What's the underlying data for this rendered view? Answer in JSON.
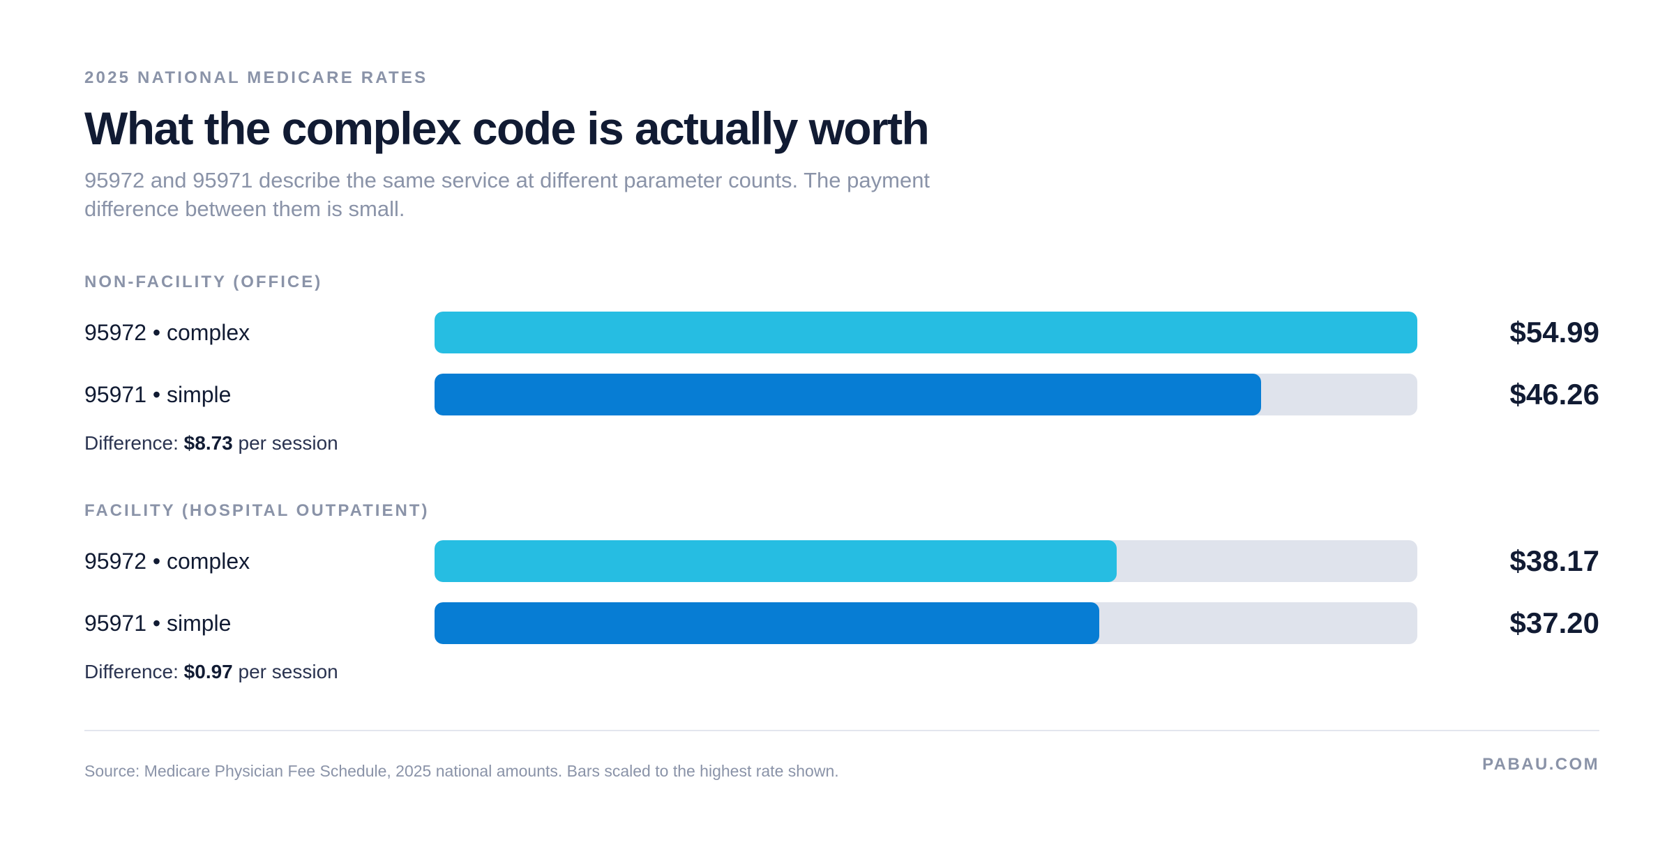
{
  "eyebrow": "2025 NATIONAL MEDICARE RATES",
  "title": "What the complex code is actually worth",
  "subtitle": "95972 and 95971 describe the same service at different parameter counts. The payment difference between them is small.",
  "colors": {
    "complex": "#26bde2",
    "simple": "#077dd4",
    "track": "#dfe3ec"
  },
  "chart_data": {
    "type": "bar",
    "orientation": "horizontal",
    "xlim": [
      0,
      54.99
    ],
    "groups": [
      {
        "label": "NON-FACILITY (OFFICE)",
        "rows": [
          {
            "label": "95972 • complex",
            "value": 54.99,
            "value_label": "$54.99",
            "color": "#26bde2"
          },
          {
            "label": "95971 • simple",
            "value": 46.26,
            "value_label": "$46.26",
            "color": "#077dd4"
          }
        ],
        "difference": {
          "prefix": "Difference:",
          "amount": "$8.73",
          "suffix": "per session"
        }
      },
      {
        "label": "FACILITY (HOSPITAL OUTPATIENT)",
        "rows": [
          {
            "label": "95972 • complex",
            "value": 38.17,
            "value_label": "$38.17",
            "color": "#26bde2"
          },
          {
            "label": "95971 • simple",
            "value": 37.2,
            "value_label": "$37.20",
            "color": "#077dd4"
          }
        ],
        "difference": {
          "prefix": "Difference:",
          "amount": "$0.97",
          "suffix": "per session"
        }
      }
    ]
  },
  "footer": {
    "source": "Source: Medicare Physician Fee Schedule, 2025 national amounts. Bars scaled to the highest rate shown.",
    "brand": "PABAU.COM"
  }
}
